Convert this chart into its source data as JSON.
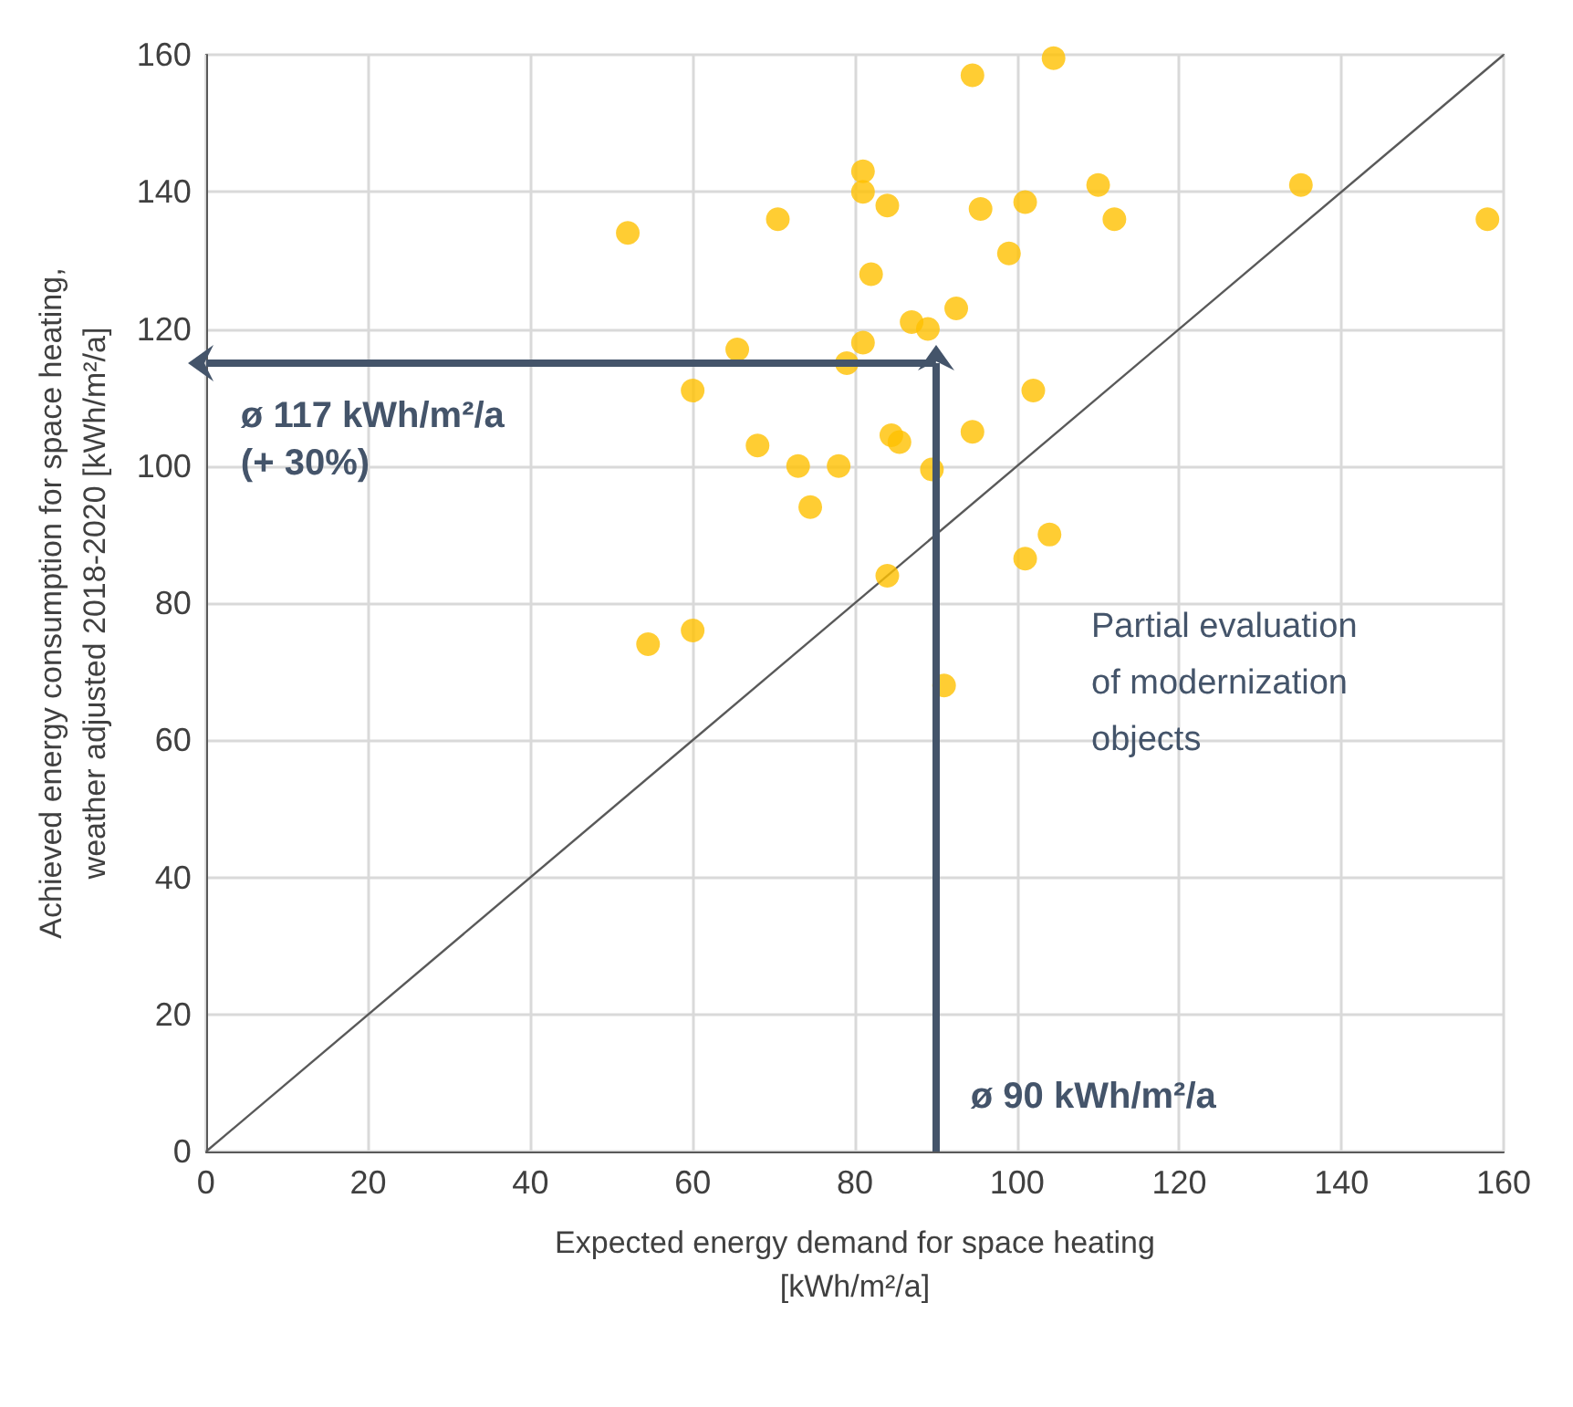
{
  "chart_data": {
    "type": "scatter",
    "xlabel": "Expected energy demand for space heating\n[kWh/m²/a]",
    "ylabel": "Achieved energy consumption for space heating,\nweather adjusted 2018-2020 [kWh/m²/a]",
    "xlim": [
      0,
      160
    ],
    "ylim": [
      0,
      160
    ],
    "xticks": [
      0,
      20,
      40,
      60,
      80,
      100,
      120,
      140,
      160
    ],
    "yticks": [
      0,
      20,
      40,
      60,
      80,
      100,
      120,
      140,
      160
    ],
    "grid": true,
    "marker": "circle",
    "series": [
      {
        "type": "line",
        "color": "#595959",
        "marker": "none",
        "line_style": "solid",
        "x": [
          0,
          160
        ],
        "values": [
          0,
          160
        ]
      },
      {
        "type": "scatter",
        "color": "#ffc000",
        "x": [
          52,
          60,
          54.5,
          60,
          65.5,
          70.5,
          68,
          73,
          74.5,
          78,
          79,
          81,
          81,
          81,
          82,
          84,
          84.5,
          85.5,
          84,
          87,
          89,
          89.5,
          91,
          92.5,
          94.5,
          94.5,
          95.5,
          99,
          101,
          102,
          101,
          104,
          104.5,
          110,
          112,
          135,
          158
        ],
        "values": [
          134,
          76,
          74,
          111,
          117,
          136,
          103,
          100,
          94,
          100,
          115,
          143,
          140,
          118,
          128,
          138,
          104.5,
          103.5,
          84,
          121,
          120,
          99.5,
          68,
          123,
          105,
          157,
          137.5,
          131,
          138.5,
          111,
          86.5,
          90,
          159.5,
          141,
          136,
          141,
          136
        ]
      }
    ],
    "ref_lines": [
      {
        "axis": "x",
        "value": 90,
        "label": "ø 90 kWh/m²/a",
        "color": "#44546a"
      },
      {
        "axis": "y",
        "value": 115,
        "label": "ø 117 kWh/m²/a\n(+ 30%)",
        "color": "#44546a"
      }
    ],
    "annotations": [
      "Partial evaluation\nof modernization\nobjects"
    ]
  }
}
